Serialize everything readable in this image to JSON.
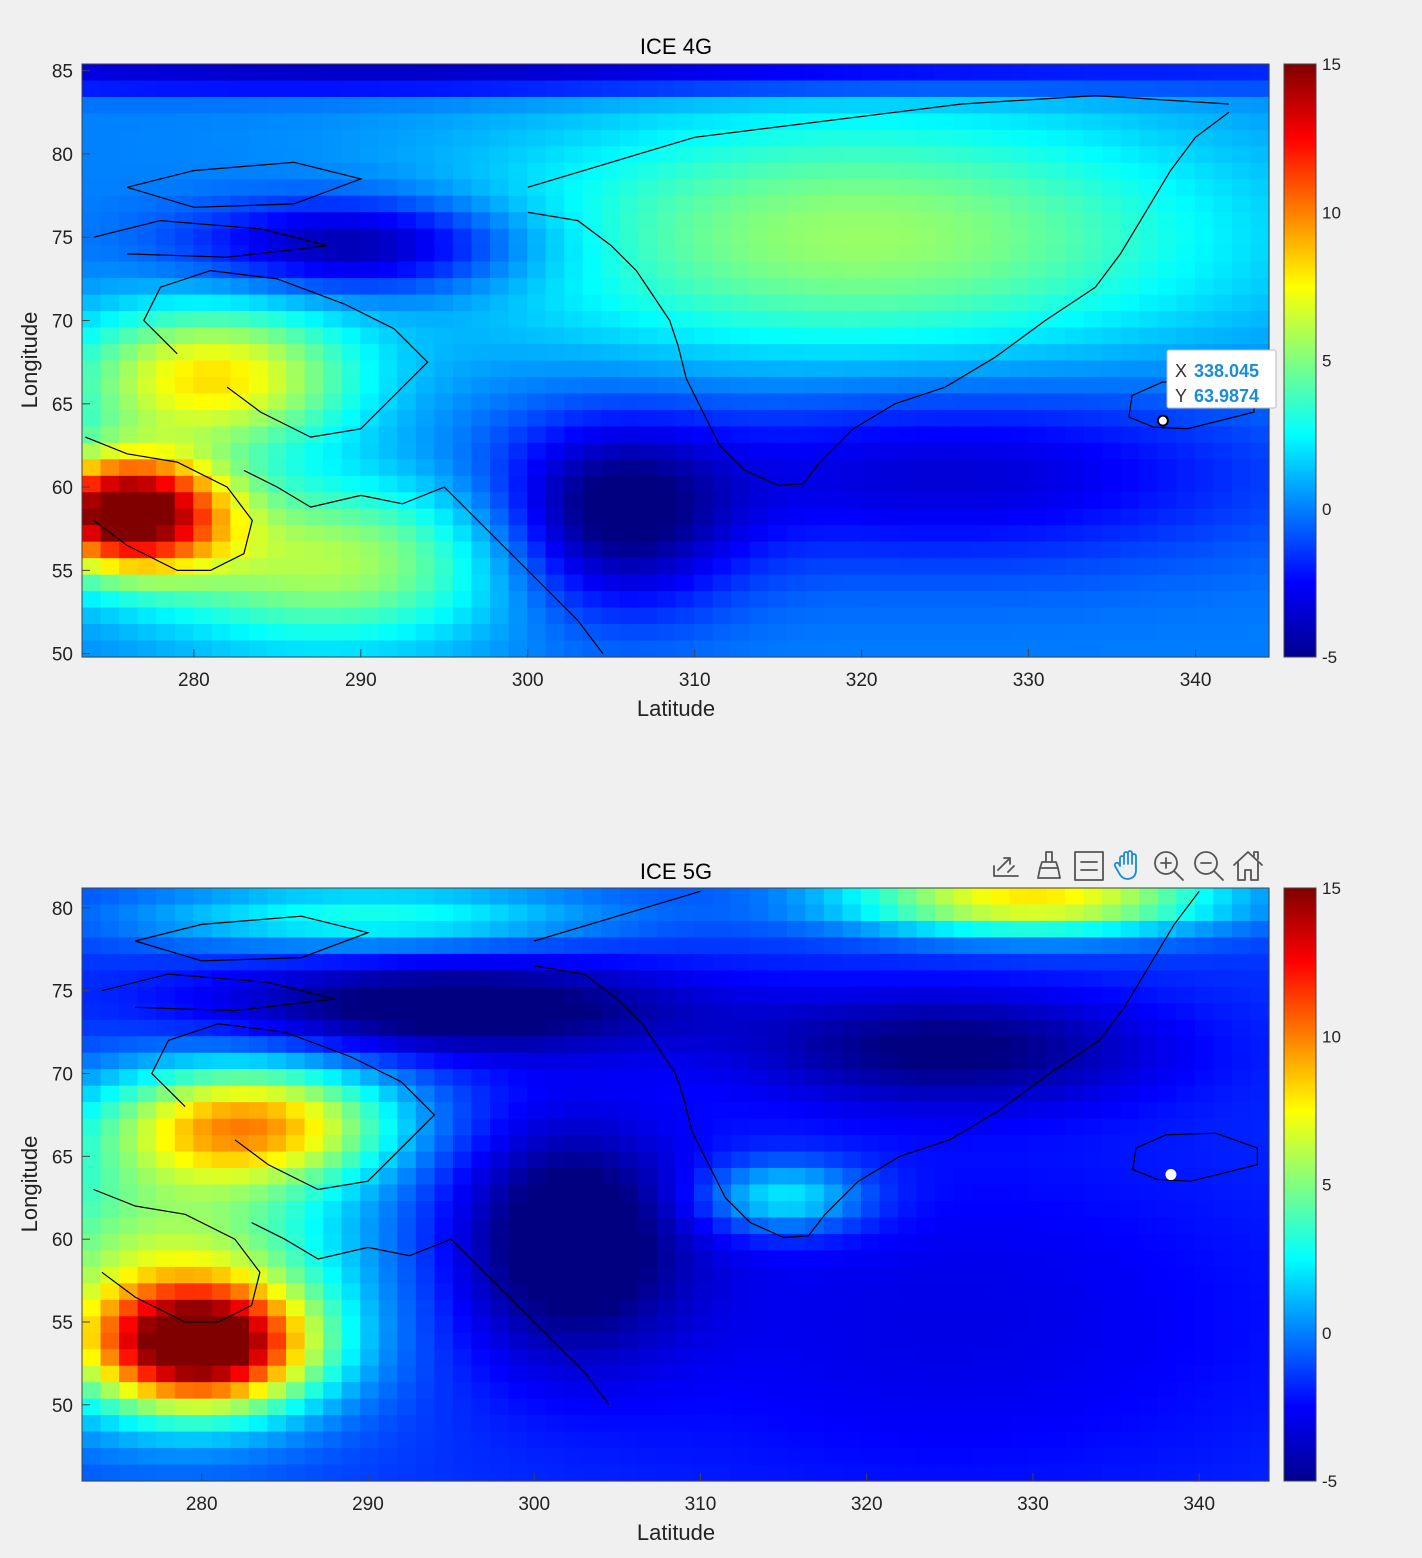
{
  "chart_data": [
    {
      "type": "heatmap",
      "title": "ICE 4G",
      "xlabel": "Latitude",
      "ylabel": "Longitude",
      "xlim": [
        273.3,
        344.4
      ],
      "ylim": [
        49.8,
        85.4
      ],
      "xticks": [
        "280",
        "290",
        "300",
        "310",
        "320",
        "330",
        "340"
      ],
      "yticks": [
        "50",
        "55",
        "60",
        "65",
        "70",
        "75",
        "80",
        "85"
      ],
      "colorbar": {
        "min": -5,
        "max": 15,
        "ticks": [
          "-5",
          "0",
          "5",
          "10",
          "15"
        ],
        "colormap": "jet"
      },
      "field_centers": [
        {
          "lon": 276,
          "lat": 58.5,
          "value": 16,
          "sx": 4,
          "sy": 2.4
        },
        {
          "lon": 281,
          "lat": 66.5,
          "value": 8,
          "sx": 6,
          "sy": 3
        },
        {
          "lon": 288,
          "lat": 55.5,
          "value": 6,
          "sx": 8,
          "sy": 3.5
        },
        {
          "lon": 320,
          "lat": 75,
          "value": 5.5,
          "sx": 16,
          "sy": 5.5
        },
        {
          "lon": 290,
          "lat": 74.5,
          "value": -5,
          "sx": 7,
          "sy": 2
        },
        {
          "lon": 305,
          "lat": 58,
          "value": -5,
          "sx": 5,
          "sy": 4
        },
        {
          "lon": 325,
          "lat": 61,
          "value": -3.5,
          "sx": 14,
          "sy": 4
        },
        {
          "lon": 300,
          "lat": 84.7,
          "value": -4,
          "sx": 40,
          "sy": 0.8
        }
      ],
      "field_base": 0,
      "datatip": {
        "x_key": "X",
        "x_value": "338.045",
        "y_key": "Y",
        "y_value": "63.9874",
        "x": 338.045,
        "y": 63.9874
      }
    },
    {
      "type": "heatmap",
      "title": "ICE 5G",
      "xlabel": "Latitude",
      "ylabel": "Longitude",
      "xlim": [
        272.8,
        344.2
      ],
      "ylim": [
        45.4,
        81.2
      ],
      "xticks": [
        "280",
        "290",
        "300",
        "310",
        "320",
        "330",
        "340"
      ],
      "yticks": [
        "50",
        "55",
        "60",
        "65",
        "70",
        "75",
        "80"
      ],
      "colorbar": {
        "min": -5,
        "max": 15,
        "ticks": [
          "-5",
          "0",
          "5",
          "10",
          "15"
        ],
        "colormap": "jet"
      },
      "field_centers": [
        {
          "lon": 280,
          "lat": 53.5,
          "value": 13,
          "sx": 4.5,
          "sy": 2.5
        },
        {
          "lon": 283,
          "lat": 67,
          "value": 8,
          "sx": 6,
          "sy": 2.5
        },
        {
          "lon": 278,
          "lat": 58,
          "value": 6,
          "sx": 8,
          "sy": 6
        },
        {
          "lon": 330,
          "lat": 80.5,
          "value": 8,
          "sx": 8,
          "sy": 1.5
        },
        {
          "lon": 290,
          "lat": 79.5,
          "value": 3,
          "sx": 10,
          "sy": 1.5
        },
        {
          "lon": 315,
          "lat": 62.5,
          "value": 3,
          "sx": 3.5,
          "sy": 1.5
        },
        {
          "lon": 295,
          "lat": 74,
          "value": -6,
          "sx": 10,
          "sy": 2
        },
        {
          "lon": 302,
          "lat": 60,
          "value": -6,
          "sx": 5,
          "sy": 5
        },
        {
          "lon": 325,
          "lat": 71.5,
          "value": -5,
          "sx": 9,
          "sy": 2.5
        },
        {
          "lon": 325,
          "lat": 55,
          "value": -3,
          "sx": 16,
          "sy": 8
        }
      ],
      "field_base": -1.5,
      "toolbar_icons": [
        "export-icon",
        "brush-icon",
        "data-tips-icon",
        "pan-icon",
        "zoom-in-icon",
        "zoom-out-icon",
        "home-icon"
      ],
      "marker": {
        "x": 338.3,
        "y": 63.9
      }
    }
  ]
}
